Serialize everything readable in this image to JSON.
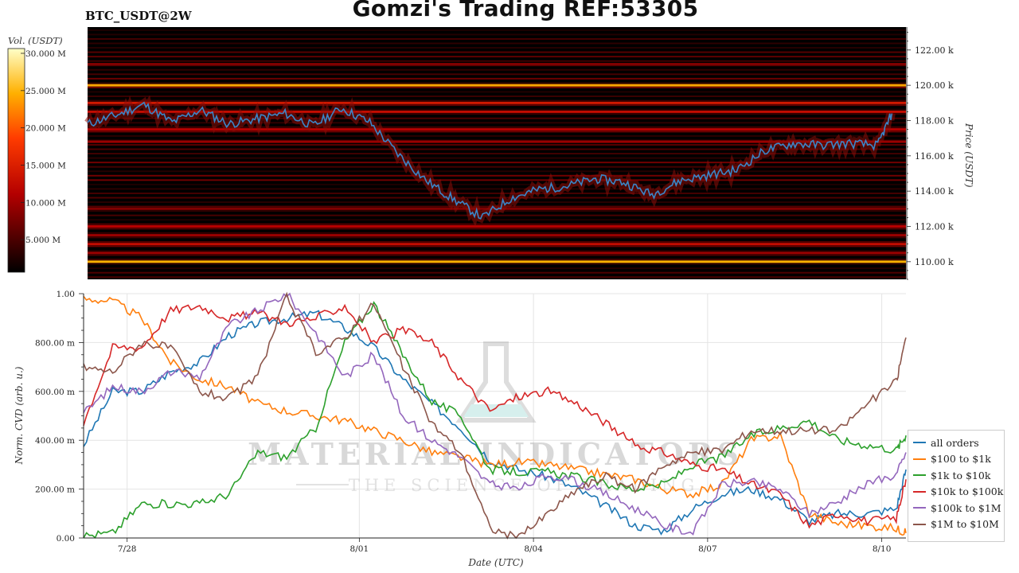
{
  "header": {
    "title": "Gomzi's Trading REF:53305",
    "symbol": "BTC_USDT@2W"
  },
  "colors": {
    "heatmap_bg": "#000000",
    "price_line": "#3a86c8",
    "grid": "#e6e6e6"
  },
  "watermark": {
    "line1": "MATERIAL INDICATORS",
    "line2": "THE SCIENCE OF TRADING"
  },
  "chart_data": [
    {
      "type": "heatmap",
      "name": "order book heatmap",
      "colorbar": {
        "label": "Vol. (USDT)",
        "ticks": [
          "30.000 M",
          "25.000 M",
          "20.000 M",
          "15.000 M",
          "10.000 M",
          "5.000 M"
        ],
        "tick_values": [
          30,
          25,
          20,
          15,
          10,
          5
        ],
        "range": [
          0,
          30
        ],
        "colormap": "hot"
      },
      "y_axis": {
        "label": "Price (USDT)",
        "ticks": [
          "122.00 k",
          "120.00 k",
          "118.00 k",
          "116.00 k",
          "114.00 k",
          "112.00 k",
          "110.00 k"
        ],
        "tick_values": [
          122000,
          120000,
          118000,
          116000,
          114000,
          112000,
          110000
        ],
        "range": [
          109000,
          123300
        ]
      },
      "x_range": [
        "2025-07-27",
        "2025-08-10T12:00"
      ],
      "strong_levels": [
        {
          "price": 120000,
          "strength": 0.78
        },
        {
          "price": 110000,
          "strength": 0.8
        },
        {
          "price": 119000,
          "strength": 0.45
        },
        {
          "price": 118500,
          "strength": 0.4
        },
        {
          "price": 117500,
          "strength": 0.35
        },
        {
          "price": 116800,
          "strength": 0.3
        },
        {
          "price": 112000,
          "strength": 0.35
        },
        {
          "price": 111500,
          "strength": 0.3
        },
        {
          "price": 111000,
          "strength": 0.4
        },
        {
          "price": 110500,
          "strength": 0.3
        },
        {
          "price": 113000,
          "strength": 0.25
        },
        {
          "price": 121200,
          "strength": 0.25
        }
      ],
      "price_series": {
        "x": [
          "07-27 00:00",
          "07-27 12:00",
          "07-28 00:00",
          "07-28 12:00",
          "07-29 00:00",
          "07-29 12:00",
          "07-30 00:00",
          "07-30 12:00",
          "07-31 00:00",
          "07-31 12:00",
          "08-01 00:00",
          "08-01 12:00",
          "08-02 00:00",
          "08-02 12:00",
          "08-03 00:00",
          "08-03 12:00",
          "08-04 00:00",
          "08-04 12:00",
          "08-05 00:00",
          "08-05 12:00",
          "08-06 00:00",
          "08-06 12:00",
          "08-07 00:00",
          "08-07 12:00",
          "08-08 00:00",
          "08-08 12:00",
          "08-09 00:00",
          "08-09 12:00",
          "08-10 00:00",
          "08-10 06:00"
        ],
        "y": [
          117800,
          118300,
          118900,
          117900,
          118600,
          117800,
          118100,
          118400,
          117700,
          118700,
          117900,
          116100,
          114600,
          113500,
          112500,
          113600,
          114100,
          114300,
          114700,
          114500,
          113800,
          114600,
          114900,
          115200,
          116300,
          116700,
          116600,
          116700,
          116600,
          118400
        ]
      }
    },
    {
      "type": "line",
      "name": "normalized CVD",
      "x_axis": {
        "label": "Date (UTC)",
        "ticks": [
          "7/28",
          "8/01",
          "8/04",
          "8/07",
          "8/10"
        ],
        "range": [
          "2025-07-27 06:00",
          "2025-08-10 10:00"
        ]
      },
      "y_axis": {
        "label": "Norm. CVD (arb. u.)",
        "ticks": [
          "1.00",
          "800.00 m",
          "600.00 m",
          "400.00 m",
          "200.00 m",
          "0.00"
        ],
        "tick_values": [
          1.0,
          0.8,
          0.6,
          0.4,
          0.2,
          0.0
        ],
        "range": [
          0,
          1
        ]
      },
      "x": [
        "07-27 06:00",
        "07-27 18:00",
        "07-28 06:00",
        "07-28 18:00",
        "07-29 06:00",
        "07-29 18:00",
        "07-30 06:00",
        "07-30 18:00",
        "07-31 06:00",
        "07-31 18:00",
        "08-01 06:00",
        "08-01 18:00",
        "08-02 06:00",
        "08-02 18:00",
        "08-03 06:00",
        "08-03 18:00",
        "08-04 06:00",
        "08-04 18:00",
        "08-05 06:00",
        "08-05 18:00",
        "08-06 06:00",
        "08-06 18:00",
        "08-07 06:00",
        "08-07 18:00",
        "08-08 06:00",
        "08-08 18:00",
        "08-09 06:00",
        "08-09 18:00",
        "08-10 06:00",
        "08-10 10:00"
      ],
      "series": [
        {
          "name": "all orders",
          "color": "#1f77b4",
          "values": [
            0.38,
            0.6,
            0.6,
            0.68,
            0.72,
            0.83,
            0.88,
            0.9,
            0.92,
            0.86,
            0.78,
            0.65,
            0.55,
            0.45,
            0.32,
            0.28,
            0.25,
            0.2,
            0.13,
            0.05,
            0.03,
            0.12,
            0.18,
            0.2,
            0.16,
            0.07,
            0.1,
            0.1,
            0.12,
            0.28
          ]
        },
        {
          "name": "$100 to $1k",
          "color": "#ff7f0e",
          "values": [
            0.98,
            0.97,
            0.9,
            0.72,
            0.65,
            0.62,
            0.55,
            0.52,
            0.5,
            0.48,
            0.44,
            0.4,
            0.35,
            0.33,
            0.3,
            0.31,
            0.3,
            0.28,
            0.26,
            0.24,
            0.2,
            0.18,
            0.22,
            0.4,
            0.42,
            0.1,
            0.06,
            0.05,
            0.04,
            0.02
          ]
        },
        {
          "name": "$1k to $10k",
          "color": "#2ca02c",
          "values": [
            0.01,
            0.02,
            0.14,
            0.14,
            0.14,
            0.18,
            0.35,
            0.33,
            0.45,
            0.8,
            0.96,
            0.75,
            0.56,
            0.5,
            0.28,
            0.27,
            0.27,
            0.25,
            0.22,
            0.2,
            0.22,
            0.3,
            0.33,
            0.42,
            0.45,
            0.48,
            0.4,
            0.38,
            0.36,
            0.42
          ]
        },
        {
          "name": "$10k to $100k",
          "color": "#d62728",
          "values": [
            0.47,
            0.78,
            0.78,
            0.93,
            0.95,
            0.9,
            0.92,
            0.88,
            0.9,
            0.95,
            0.8,
            0.85,
            0.8,
            0.65,
            0.52,
            0.58,
            0.6,
            0.55,
            0.47,
            0.38,
            0.35,
            0.3,
            0.28,
            0.22,
            0.18,
            0.05,
            0.1,
            0.07,
            0.08,
            0.24
          ]
        },
        {
          "name": "$100k to $1M",
          "color": "#9467bd",
          "values": [
            0.51,
            0.62,
            0.6,
            0.68,
            0.66,
            0.87,
            0.93,
            1.0,
            0.84,
            0.66,
            0.75,
            0.5,
            0.4,
            0.33,
            0.22,
            0.2,
            0.26,
            0.23,
            0.18,
            0.12,
            0.05,
            0.02,
            0.22,
            0.23,
            0.2,
            0.1,
            0.15,
            0.22,
            0.26,
            0.35
          ]
        },
        {
          "name": "$1M to $10M",
          "color": "#8c564b",
          "values": [
            0.7,
            0.68,
            0.8,
            0.78,
            0.6,
            0.57,
            0.66,
            0.99,
            0.76,
            0.82,
            0.96,
            0.7,
            0.47,
            0.35,
            0.04,
            0.0,
            0.1,
            0.2,
            0.25,
            0.2,
            0.3,
            0.35,
            0.36,
            0.44,
            0.44,
            0.44,
            0.44,
            0.55,
            0.64,
            0.82
          ]
        }
      ]
    }
  ]
}
